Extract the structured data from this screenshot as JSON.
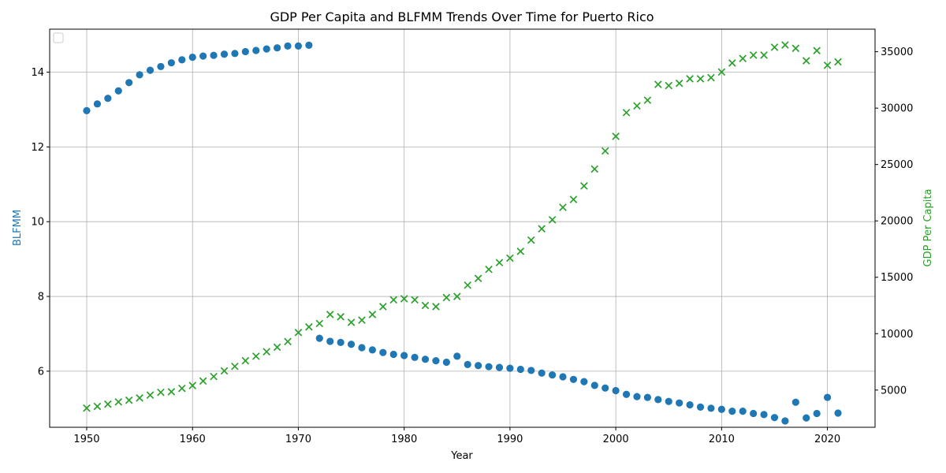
{
  "chart_data": {
    "type": "scatter",
    "title": "GDP Per Capita and BLFMM Trends Over Time for Puerto Rico",
    "xlabel": "Year",
    "ylabel_left": "BLFMM",
    "ylabel_right": "GDP Per Capita",
    "xlim": [
      1946.5,
      2024.5
    ],
    "ylim_left": [
      4.5,
      15.15
    ],
    "ylim_right": [
      1700,
      37000
    ],
    "xticks": [
      1950,
      1960,
      1970,
      1980,
      1990,
      2000,
      2010,
      2020
    ],
    "yticks_left": [
      6,
      8,
      10,
      12,
      14
    ],
    "yticks_right": [
      5000,
      10000,
      15000,
      20000,
      25000,
      30000,
      35000
    ],
    "grid": true,
    "legend": "top-left (empty)",
    "colors": {
      "blfmm": "#1f77b4",
      "gdp": "#2ca02c",
      "axis_left_label": "#1f77b4",
      "axis_right_label": "#2ca02c"
    },
    "series": [
      {
        "axis": "left",
        "marker": "circle",
        "x": [
          1950,
          1951,
          1952,
          1953,
          1954,
          1955,
          1956,
          1957,
          1958,
          1959,
          1960,
          1961,
          1962,
          1963,
          1964,
          1965,
          1966,
          1967,
          1968,
          1969,
          1970,
          1971,
          1972,
          1973,
          1974,
          1975,
          1976,
          1977,
          1978,
          1979,
          1980,
          1981,
          1982,
          1983,
          1984,
          1985,
          1986,
          1987,
          1988,
          1989,
          1990,
          1991,
          1992,
          1993,
          1994,
          1995,
          1996,
          1997,
          1998,
          1999,
          2000,
          2001,
          2002,
          2003,
          2004,
          2005,
          2006,
          2007,
          2008,
          2009,
          2010,
          2011,
          2012,
          2013,
          2014,
          2015,
          2016,
          2017,
          2018,
          2019,
          2020,
          2021
        ],
        "values": [
          12.97,
          13.15,
          13.3,
          13.5,
          13.72,
          13.93,
          14.05,
          14.15,
          14.25,
          14.33,
          14.4,
          14.43,
          14.45,
          14.48,
          14.5,
          14.55,
          14.58,
          14.62,
          14.65,
          14.7,
          14.7,
          14.72,
          6.88,
          6.8,
          6.77,
          6.72,
          6.63,
          6.57,
          6.5,
          6.45,
          6.42,
          6.37,
          6.32,
          6.28,
          6.24,
          6.4,
          6.18,
          6.15,
          6.12,
          6.1,
          6.08,
          6.05,
          6.02,
          5.95,
          5.9,
          5.85,
          5.78,
          5.72,
          5.62,
          5.55,
          5.48,
          5.38,
          5.32,
          5.3,
          5.24,
          5.19,
          5.15,
          5.1,
          5.04,
          5.01,
          4.98,
          4.93,
          4.93,
          4.87,
          4.84,
          4.76,
          4.67,
          5.17,
          4.75,
          4.87,
          5.3,
          4.88
        ]
      },
      {
        "axis": "right",
        "marker": "x",
        "x": [
          1950,
          1951,
          1952,
          1953,
          1954,
          1955,
          1956,
          1957,
          1958,
          1959,
          1960,
          1961,
          1962,
          1963,
          1964,
          1965,
          1966,
          1967,
          1968,
          1969,
          1970,
          1971,
          1972,
          1973,
          1974,
          1975,
          1976,
          1977,
          1978,
          1979,
          1980,
          1981,
          1982,
          1983,
          1984,
          1985,
          1986,
          1987,
          1988,
          1989,
          1990,
          1991,
          1992,
          1993,
          1994,
          1995,
          1996,
          1997,
          1998,
          1999,
          2000,
          2001,
          2002,
          2003,
          2004,
          2005,
          2006,
          2007,
          2008,
          2009,
          2010,
          2011,
          2012,
          2013,
          2014,
          2015,
          2016,
          2017,
          2018,
          2019,
          2020,
          2021
        ],
        "values": [
          3400,
          3550,
          3750,
          3950,
          4100,
          4300,
          4550,
          4800,
          4850,
          5150,
          5400,
          5800,
          6200,
          6700,
          7100,
          7600,
          8000,
          8400,
          8800,
          9300,
          10100,
          10600,
          10900,
          11700,
          11500,
          11000,
          11200,
          11700,
          12400,
          13000,
          13100,
          13000,
          12500,
          12400,
          13200,
          13300,
          14300,
          14900,
          15700,
          16300,
          16700,
          17300,
          18300,
          19300,
          20100,
          21200,
          21900,
          23100,
          24600,
          26200,
          27500,
          29600,
          30200,
          30700,
          32100,
          32000,
          32200,
          32600,
          32600,
          32700,
          33200,
          34000,
          34400,
          34700,
          34700,
          35400,
          35600,
          35300,
          34200,
          35100,
          33800,
          34100
        ]
      }
    ]
  }
}
